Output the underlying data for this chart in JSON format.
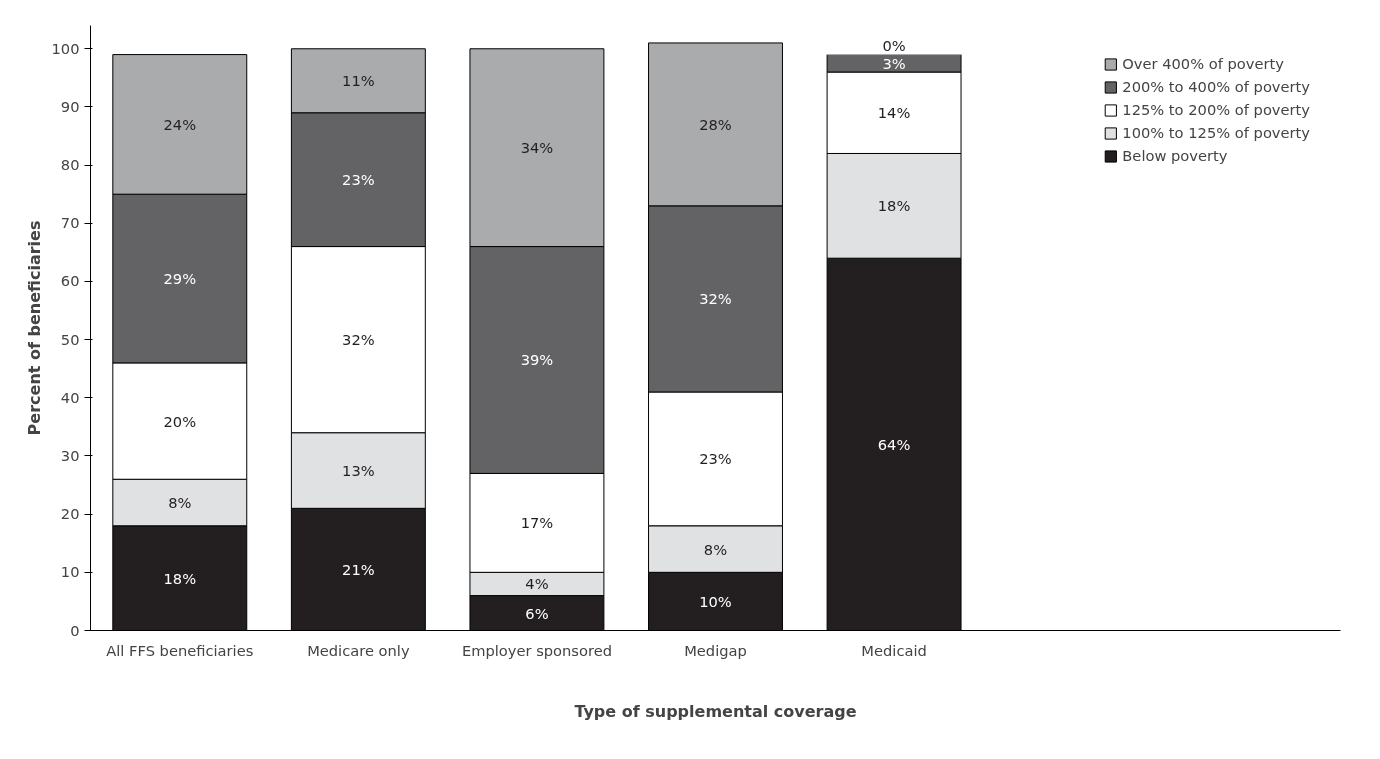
{
  "chart_data": {
    "type": "bar",
    "stacked": true,
    "xlabel": "Type of supplemental coverage",
    "ylabel": "Percent of beneficiaries",
    "categories": [
      "All FFS beneficiaries",
      "Medicare only",
      "Employer sponsored",
      "Medigap",
      "Medicaid"
    ],
    "series": [
      {
        "name": "Below poverty",
        "color": "#231f20",
        "values": [
          18,
          21,
          6,
          10,
          64
        ],
        "value_labels": [
          "18%",
          "21%",
          "6%",
          "10%",
          "64%"
        ]
      },
      {
        "name": "100% to 125% of poverty",
        "color": "#e0e1e2",
        "values": [
          8,
          13,
          4,
          8,
          18
        ],
        "value_labels": [
          "8%",
          "13%",
          "4%",
          "8%",
          "18%"
        ]
      },
      {
        "name": "125% to 200% of poverty",
        "color": "#ffffff",
        "values": [
          20,
          32,
          17,
          23,
          14
        ],
        "value_labels": [
          "20%",
          "32%",
          "17%",
          "23%",
          "14%"
        ]
      },
      {
        "name": "200% to 400% of poverty",
        "color": "#636265",
        "values": [
          29,
          23,
          39,
          32,
          3
        ],
        "value_labels": [
          "29%",
          "23%",
          "39%",
          "32%",
          "3%"
        ]
      },
      {
        "name": "Over 400% of poverty",
        "color": "#aaabad",
        "values": [
          24,
          11,
          34,
          28,
          0
        ],
        "value_labels": [
          "24%",
          "11%",
          "34%",
          "28%",
          "0%"
        ]
      }
    ],
    "ylim": [
      0,
      104
    ],
    "yticks": [
      0,
      10,
      20,
      30,
      40,
      50,
      60,
      70,
      80,
      90,
      100
    ],
    "grid": false,
    "legend": "top right"
  }
}
